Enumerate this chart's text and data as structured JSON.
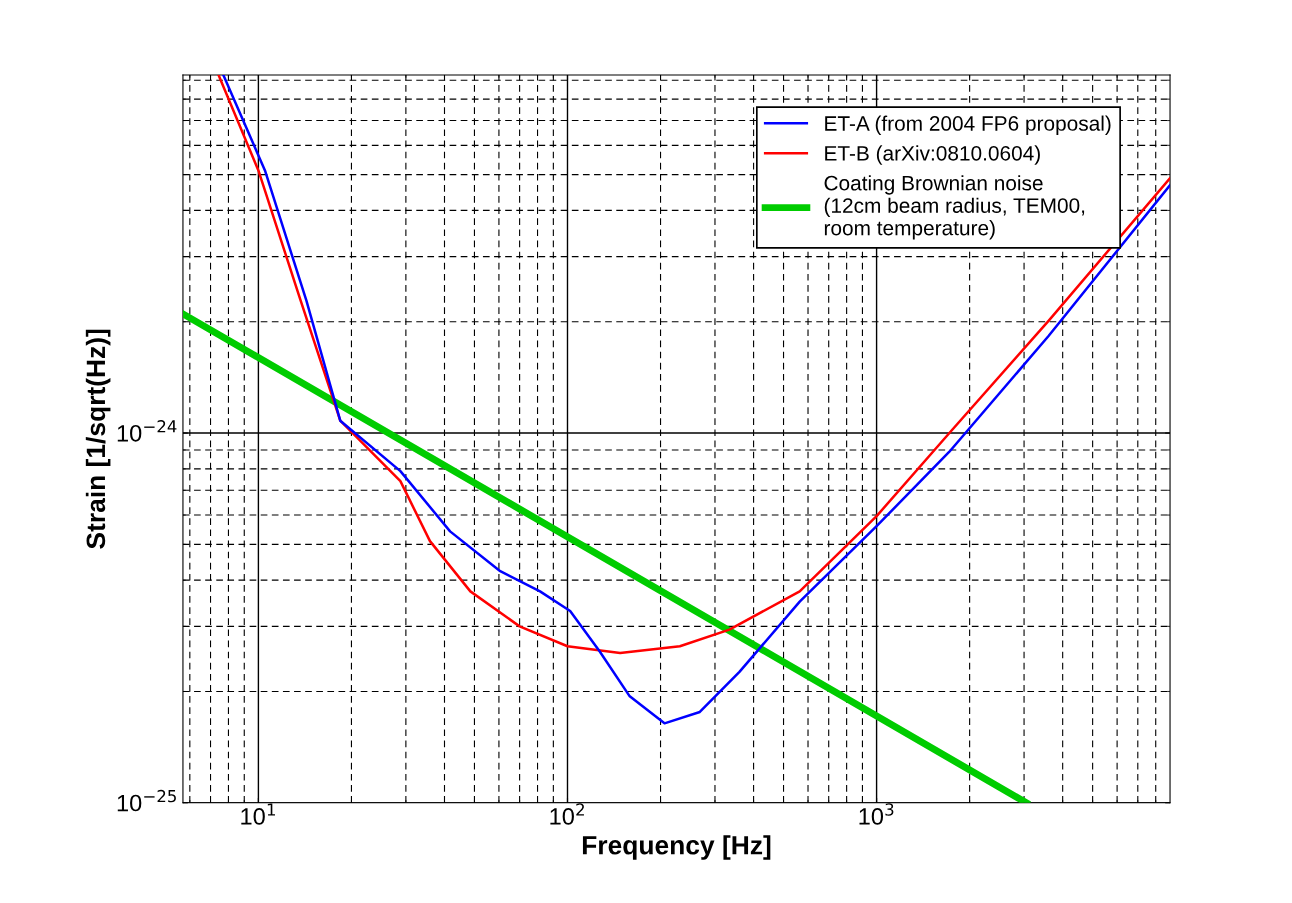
{
  "chart_data": {
    "type": "line",
    "xlabel": "Frequency [Hz]",
    "ylabel": "Strain [1/sqrt(Hz)]",
    "log": "xy",
    "grid": true,
    "legend": "top right",
    "xlim": [
      5.7,
      8900
    ],
    "ylim": [
      1e-25,
      9.3e-24
    ],
    "xticks": [
      {
        "value": 10,
        "label": "10$^{1}$"
      },
      {
        "value": 100,
        "label": "10$^{2}$"
      },
      {
        "value": 1000,
        "label": "10$^{3}$"
      }
    ],
    "yticks": [
      {
        "value": 1e-25,
        "label": "10$^{−25}$"
      },
      {
        "value": 1e-24,
        "label": "10$^{−24}$"
      }
    ],
    "series": [
      {
        "name": "ET-A (from 2004 FP6 proposal)",
        "color": "#0000ff",
        "x": [
          7.7,
          10.5,
          14.3,
          18.4,
          28.8,
          41.7,
          60.6,
          81.5,
          102,
          127,
          159,
          206,
          268,
          360,
          564,
          1000,
          1720,
          3600,
          8880
        ],
        "values": [
          9.3e-24,
          5.13e-24,
          2.28e-24,
          1.08e-24,
          7.89e-25,
          5.42e-25,
          4.23e-25,
          3.73e-25,
          3.3e-25,
          2.57e-25,
          1.94e-25,
          1.64e-25,
          1.76e-25,
          2.26e-25,
          3.5e-25,
          5.6e-25,
          8.9e-25,
          1.83e-24,
          4.67e-24
        ]
      },
      {
        "name": "ET-B (arXiv:0810.0604)",
        "color": "#ff0000",
        "x": [
          7.43,
          10,
          13.7,
          18.4,
          28.8,
          35.9,
          48.5,
          70,
          100,
          148,
          231,
          334,
          564,
          1000,
          1720,
          3600,
          8880
        ],
        "values": [
          9.3e-24,
          5.13e-24,
          2.28e-24,
          1.08e-24,
          7.41e-25,
          5.1e-25,
          3.73e-25,
          3e-25,
          2.65e-25,
          2.54e-25,
          2.65e-25,
          2.94e-25,
          3.73e-25,
          5.96e-25,
          1e-24,
          2.01e-24,
          4.88e-24
        ]
      },
      {
        "name": "Coating Brownian noise\n(12cm beam radius, TEM00,\nroom temperature)",
        "color": "#00cc00",
        "x": [
          5.7,
          3050
        ],
        "values": [
          2.1e-24,
          1e-25
        ]
      }
    ]
  }
}
